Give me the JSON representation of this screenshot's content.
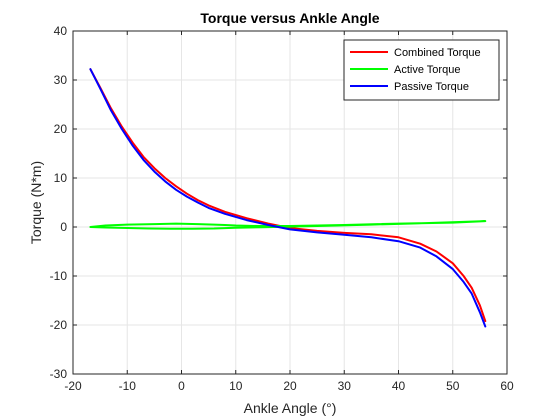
{
  "chart_data": {
    "type": "line",
    "title": "Torque versus Ankle Angle",
    "xlabel": "Ankle Angle (°)",
    "ylabel": "Torque (N*m)",
    "xlim": [
      -20,
      60
    ],
    "ylim": [
      -30,
      40
    ],
    "xticks": [
      -20,
      -10,
      0,
      10,
      20,
      30,
      40,
      50,
      60
    ],
    "yticks": [
      -30,
      -20,
      -10,
      0,
      10,
      20,
      30,
      40
    ],
    "grid": true,
    "legend_position": "top-right",
    "series": [
      {
        "name": "Combined Torque",
        "color": "#ff0000",
        "x": [
          -16.8,
          -15,
          -13,
          -11,
          -9,
          -7,
          -5,
          -3,
          -1,
          1,
          3,
          5,
          8,
          12,
          16,
          20,
          25,
          30,
          35,
          40,
          44,
          47,
          50,
          52,
          53.5,
          55,
          56
        ],
        "y": [
          32.2,
          28.5,
          24.2,
          20.5,
          17.2,
          14.3,
          12,
          10,
          8.3,
          6.8,
          5.5,
          4.4,
          3.1,
          1.8,
          0.7,
          -0.2,
          -0.8,
          -1.2,
          -1.5,
          -2.1,
          -3.4,
          -5,
          -7.4,
          -10,
          -12.4,
          -16,
          -19.2
        ]
      },
      {
        "name": "Active Torque",
        "color": "#00ff00",
        "x": [
          -16.8,
          -14,
          -10,
          -5,
          -1,
          3,
          6,
          8,
          10,
          14,
          20,
          30,
          40,
          50,
          56,
          45,
          35,
          25,
          15,
          10,
          6,
          2,
          -2,
          -6,
          -10,
          -14,
          -16.8
        ],
        "y": [
          0,
          0.3,
          0.5,
          0.6,
          0.7,
          0.6,
          0.5,
          0.4,
          0.3,
          0.2,
          0.2,
          0.4,
          0.7,
          0.9,
          1.2,
          0.8,
          0.5,
          0.2,
          -0.05,
          -0.15,
          -0.3,
          -0.35,
          -0.35,
          -0.3,
          -0.2,
          -0.1,
          0
        ]
      },
      {
        "name": "Passive Torque",
        "color": "#0000ff",
        "x": [
          -16.8,
          -15,
          -13,
          -11,
          -9,
          -7,
          -5,
          -3,
          -1,
          1,
          3,
          5,
          8,
          12,
          16,
          20,
          25,
          30,
          35,
          40,
          44,
          47,
          50,
          52,
          53.5,
          55,
          56
        ],
        "y": [
          32.2,
          28.3,
          23.8,
          20,
          16.6,
          13.7,
          11.3,
          9.3,
          7.6,
          6.2,
          5,
          3.9,
          2.7,
          1.4,
          0.4,
          -0.5,
          -1.1,
          -1.6,
          -2.1,
          -2.9,
          -4.2,
          -6,
          -8.6,
          -11.2,
          -13.6,
          -17.4,
          -20.3
        ]
      }
    ]
  }
}
